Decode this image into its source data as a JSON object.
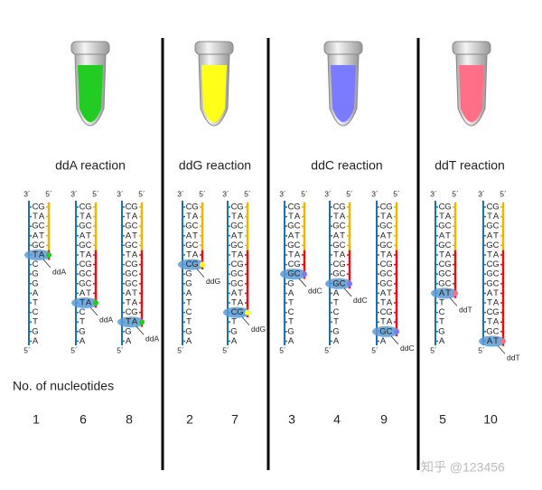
{
  "template": [
    "C",
    "T",
    "G",
    "A",
    "G",
    "T",
    "C",
    "G",
    "G",
    "A",
    "T",
    "C",
    "T",
    "G",
    "A"
  ],
  "complement": [
    "G",
    "A",
    "C",
    "T",
    "C",
    "A",
    "G",
    "C",
    "C",
    "T",
    "A",
    "G",
    "A",
    "C",
    "T"
  ],
  "end_top_left": "3´",
  "end_top_right": "5´",
  "end_bottom": "5´",
  "nucleotides_label": "No. of nucleotides",
  "watermark": "知乎 @123456",
  "reactions": [
    {
      "title": "ddA reaction",
      "terminator": "ddA",
      "color": "#22cc22",
      "fragments": [
        1,
        6,
        8
      ]
    },
    {
      "title": "ddG reaction",
      "terminator": "ddG",
      "color": "#ffff1a",
      "fragments": [
        2,
        7
      ]
    },
    {
      "title": "ddC reaction",
      "terminator": "ddC",
      "color": "#7b7bff",
      "fragments": [
        3,
        4,
        9
      ]
    },
    {
      "title": "ddT reaction",
      "terminator": "ddT",
      "color": "#ff6f86",
      "fragments": [
        5,
        10
      ]
    }
  ]
}
